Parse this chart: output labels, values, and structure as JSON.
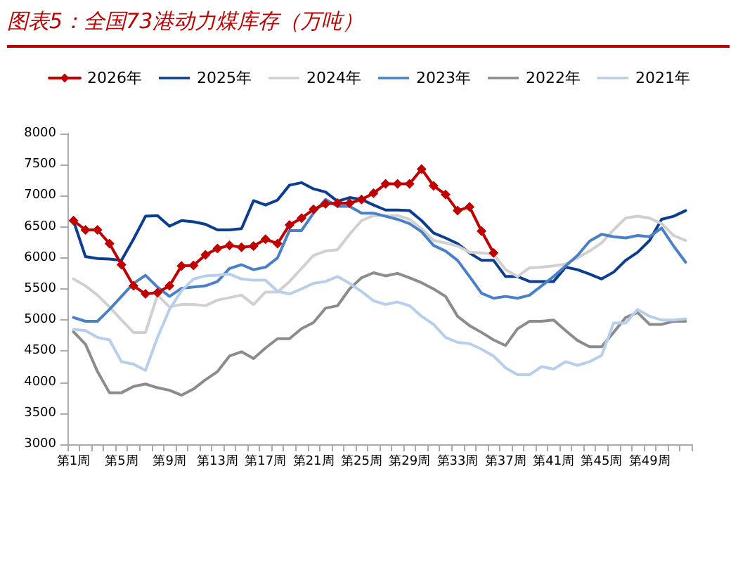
{
  "chart_data": {
    "type": "line",
    "title": "图表5：全国73港动力煤库存（万吨）",
    "categories": [
      "第1周",
      null,
      null,
      null,
      "第5周",
      null,
      null,
      null,
      "第9周",
      null,
      null,
      null,
      "第13周",
      null,
      null,
      null,
      "第17周",
      null,
      null,
      null,
      "第21周",
      null,
      null,
      null,
      "第25周",
      null,
      null,
      null,
      "第29周",
      null,
      null,
      null,
      "第33周",
      null,
      null,
      null,
      "第37周",
      null,
      null,
      null,
      "第41周",
      null,
      null,
      null,
      "第45周",
      null,
      null,
      null,
      "第49周",
      null,
      null,
      null
    ],
    "series": [
      {
        "name": "2026年",
        "color": "#c00000",
        "marker": "diamond",
        "values": [
          6600,
          6450,
          6450,
          6230,
          5890,
          5550,
          5420,
          5440,
          5550,
          5870,
          5880,
          6050,
          6150,
          6200,
          6170,
          6190,
          6300,
          6230,
          6530,
          6640,
          6780,
          6870,
          6880,
          6880,
          6940,
          7040,
          7190,
          7190,
          7190,
          7430,
          7160,
          7020,
          6760,
          6820,
          6430,
          6080,
          null,
          null,
          null,
          null,
          null,
          null,
          null,
          null,
          null,
          null,
          null,
          null,
          null,
          null,
          null,
          null
        ]
      },
      {
        "name": "2025年",
        "color": "#0b3e91",
        "values": [
          6600,
          6020,
          5990,
          5980,
          5960,
          6300,
          6670,
          6680,
          6510,
          6600,
          6580,
          6540,
          6450,
          6450,
          6470,
          6920,
          6850,
          6930,
          7170,
          7210,
          7110,
          7060,
          6910,
          6970,
          6940,
          6850,
          6770,
          6770,
          6760,
          6600,
          6400,
          6320,
          6230,
          6080,
          5960,
          5960,
          5700,
          5700,
          5620,
          5620,
          5620,
          5850,
          5810,
          5740,
          5660,
          5770,
          5960,
          6090,
          6280,
          6620,
          6670,
          6760
        ]
      },
      {
        "name": "2024年",
        "color": "#d0d0d0",
        "values": [
          5660,
          5550,
          5400,
          5210,
          5000,
          4800,
          4800,
          5400,
          5210,
          5250,
          5250,
          5230,
          5320,
          5360,
          5400,
          5250,
          5450,
          5450,
          5620,
          5830,
          6040,
          6110,
          6130,
          6380,
          6600,
          6680,
          6680,
          6680,
          6620,
          6470,
          6280,
          6240,
          6190,
          6090,
          6080,
          6060,
          5810,
          5700,
          5840,
          5850,
          5870,
          5900,
          6000,
          6110,
          6240,
          6450,
          6640,
          6670,
          6640,
          6550,
          6360,
          6280
        ]
      },
      {
        "name": "2023年",
        "color": "#4a80c8",
        "values": [
          5040,
          4980,
          4980,
          5170,
          5380,
          5590,
          5720,
          5530,
          5380,
          5510,
          5530,
          5550,
          5620,
          5830,
          5890,
          5810,
          5850,
          6000,
          6440,
          6440,
          6720,
          6940,
          6830,
          6830,
          6720,
          6720,
          6670,
          6620,
          6550,
          6420,
          6200,
          6110,
          5960,
          5700,
          5430,
          5350,
          5380,
          5350,
          5400,
          5550,
          5700,
          5870,
          6040,
          6270,
          6380,
          6340,
          6320,
          6360,
          6340,
          6480,
          6190,
          5930
        ]
      },
      {
        "name": "2022年",
        "color": "#8c8c8c",
        "values": [
          4810,
          4610,
          4170,
          3830,
          3830,
          3930,
          3970,
          3910,
          3870,
          3790,
          3890,
          4040,
          4170,
          4420,
          4490,
          4380,
          4550,
          4700,
          4700,
          4860,
          4960,
          5190,
          5230,
          5500,
          5680,
          5760,
          5710,
          5750,
          5680,
          5600,
          5500,
          5380,
          5060,
          4910,
          4800,
          4680,
          4590,
          4860,
          4980,
          4980,
          5000,
          4830,
          4670,
          4570,
          4570,
          4800,
          5040,
          5120,
          4930,
          4930,
          4980,
          4980
        ]
      },
      {
        "name": "2021年",
        "color": "#b8cfec",
        "values": [
          4850,
          4830,
          4720,
          4680,
          4330,
          4290,
          4190,
          4720,
          5170,
          5470,
          5660,
          5710,
          5720,
          5740,
          5660,
          5640,
          5640,
          5460,
          5420,
          5500,
          5590,
          5620,
          5700,
          5590,
          5460,
          5310,
          5250,
          5290,
          5230,
          5060,
          4930,
          4720,
          4640,
          4620,
          4530,
          4420,
          4230,
          4120,
          4120,
          4250,
          4210,
          4330,
          4270,
          4330,
          4430,
          4950,
          4950,
          5170,
          5060,
          5000,
          5000,
          5020
        ]
      }
    ],
    "ylim": [
      3000,
      8000
    ],
    "yticks": [
      3000,
      3500,
      4000,
      4500,
      5000,
      5500,
      6000,
      6500,
      7000,
      7500,
      8000
    ],
    "grid": false,
    "legend": "top",
    "line_style": "solid"
  }
}
